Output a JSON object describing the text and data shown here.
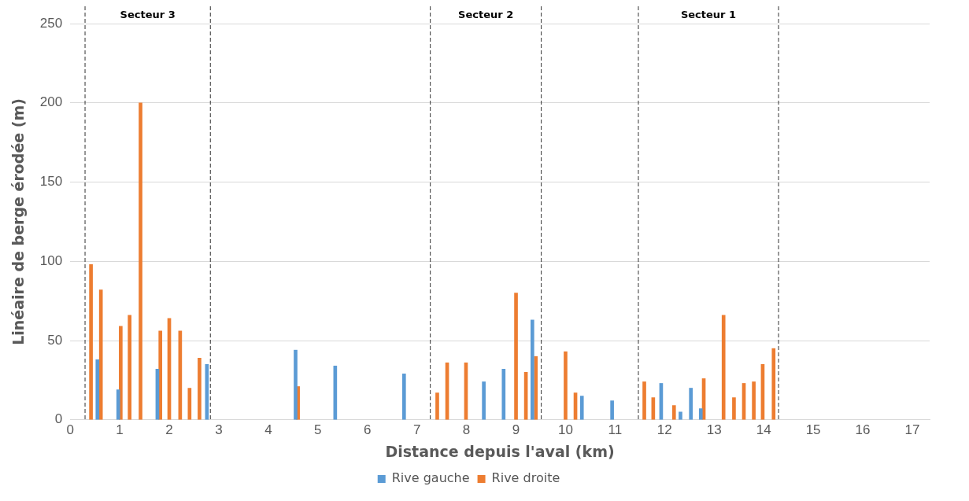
{
  "chart_data": {
    "type": "bar",
    "xlabel": "Distance depuis l'aval (km)",
    "ylabel": "Linéaire de berge érodée (m)",
    "series": [
      {
        "name": "Rive gauche",
        "color": "#5b9bd5",
        "x": [
          0.55,
          0.97,
          1.76,
          2.76,
          4.55,
          5.35,
          6.74,
          8.35,
          8.75,
          9.33,
          10.33,
          10.94,
          11.93,
          12.32,
          12.53,
          12.73
        ],
        "values": [
          38,
          19,
          32,
          35,
          44,
          34,
          29,
          24,
          32,
          63,
          15,
          12,
          23,
          5,
          20,
          7
        ]
      },
      {
        "name": "Rive droite",
        "color": "#ed7d31",
        "x": [
          0.42,
          0.62,
          1.02,
          1.2,
          1.42,
          1.82,
          2.0,
          2.22,
          2.41,
          2.61,
          4.6,
          7.41,
          7.61,
          7.99,
          9.0,
          9.2,
          9.4,
          10.0,
          10.2,
          11.59,
          11.77,
          12.19,
          12.79,
          13.19,
          13.4,
          13.6,
          13.8,
          13.98,
          14.2
        ],
        "values": [
          98,
          82,
          59,
          66,
          200,
          56,
          64,
          56,
          20,
          39,
          21,
          17,
          36,
          36,
          80,
          30,
          40,
          43,
          17,
          24,
          14,
          9,
          26,
          66,
          14,
          23,
          24,
          35,
          45
        ]
      }
    ],
    "xlim": [
      0,
      17.35
    ],
    "xticks": [
      0,
      1,
      2,
      3,
      4,
      5,
      6,
      7,
      8,
      9,
      10,
      11,
      12,
      13,
      14,
      15,
      16,
      17
    ],
    "ylim": [
      0,
      250
    ],
    "yticks": [
      0,
      50,
      100,
      150,
      200,
      250
    ],
    "grid": "y",
    "legend": "bottom",
    "ref_lines": [
      {
        "axis": "x",
        "value": 0.3,
        "line_style": "dashed",
        "color": "#333333"
      },
      {
        "axis": "x",
        "value": 2.83,
        "line_style": "dashed",
        "color": "#333333"
      },
      {
        "axis": "x",
        "value": 7.27,
        "line_style": "dashed",
        "color": "#333333"
      },
      {
        "axis": "x",
        "value": 9.51,
        "line_style": "dashed",
        "color": "#333333"
      },
      {
        "axis": "x",
        "value": 11.47,
        "line_style": "dashed",
        "color": "#333333"
      },
      {
        "axis": "x",
        "value": 14.3,
        "line_style": "dashed",
        "color": "#333333"
      }
    ],
    "annotations": [
      "Secteur 3",
      "Secteur 2",
      "Secteur 1"
    ]
  }
}
